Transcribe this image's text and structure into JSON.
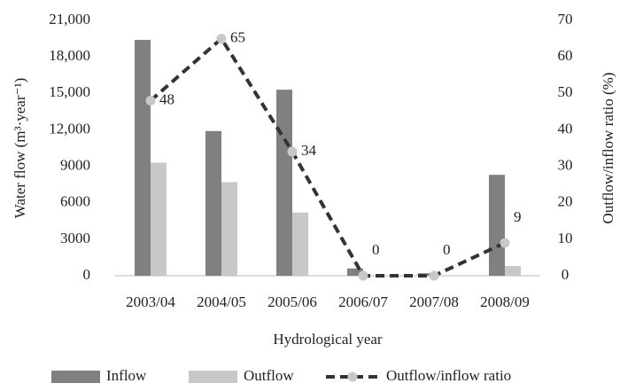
{
  "chart_data": {
    "type": "bar",
    "categories": [
      "2003/04",
      "2004/05",
      "2005/06",
      "2006/07",
      "2007/08",
      "2008/09"
    ],
    "series": [
      {
        "name": "Inflow",
        "color": "#808080",
        "values": [
          19400,
          11900,
          15300,
          600,
          200,
          8300
        ]
      },
      {
        "name": "Outflow",
        "color": "#c8c8c8",
        "values": [
          9300,
          7700,
          5200,
          0,
          0,
          800
        ]
      },
      {
        "name": "Outflow/inflow ratio",
        "type": "line",
        "axis": "y2",
        "color": "#333333",
        "marker_color": "#c8c8c8",
        "values": [
          48,
          65,
          34,
          0,
          0,
          9
        ]
      }
    ],
    "ylim": [
      0,
      21000
    ],
    "yticks": [
      0,
      3000,
      6000,
      9000,
      {
        "value": 12000,
        "label": "12,000"
      },
      {
        "value": 15000,
        "label": "15,000"
      },
      {
        "value": 18000,
        "label": "18,000"
      },
      {
        "value": 21000,
        "label": "21,000"
      }
    ],
    "y2lim": [
      0,
      70
    ],
    "y2ticks": [
      0,
      10,
      20,
      30,
      40,
      50,
      60,
      70
    ],
    "xlabel": "Hydrological year",
    "ylabel": "Water flow (m³·year⁻¹)",
    "y2label": "Outflow/inflow ratio (%)",
    "legend": "bottom"
  }
}
